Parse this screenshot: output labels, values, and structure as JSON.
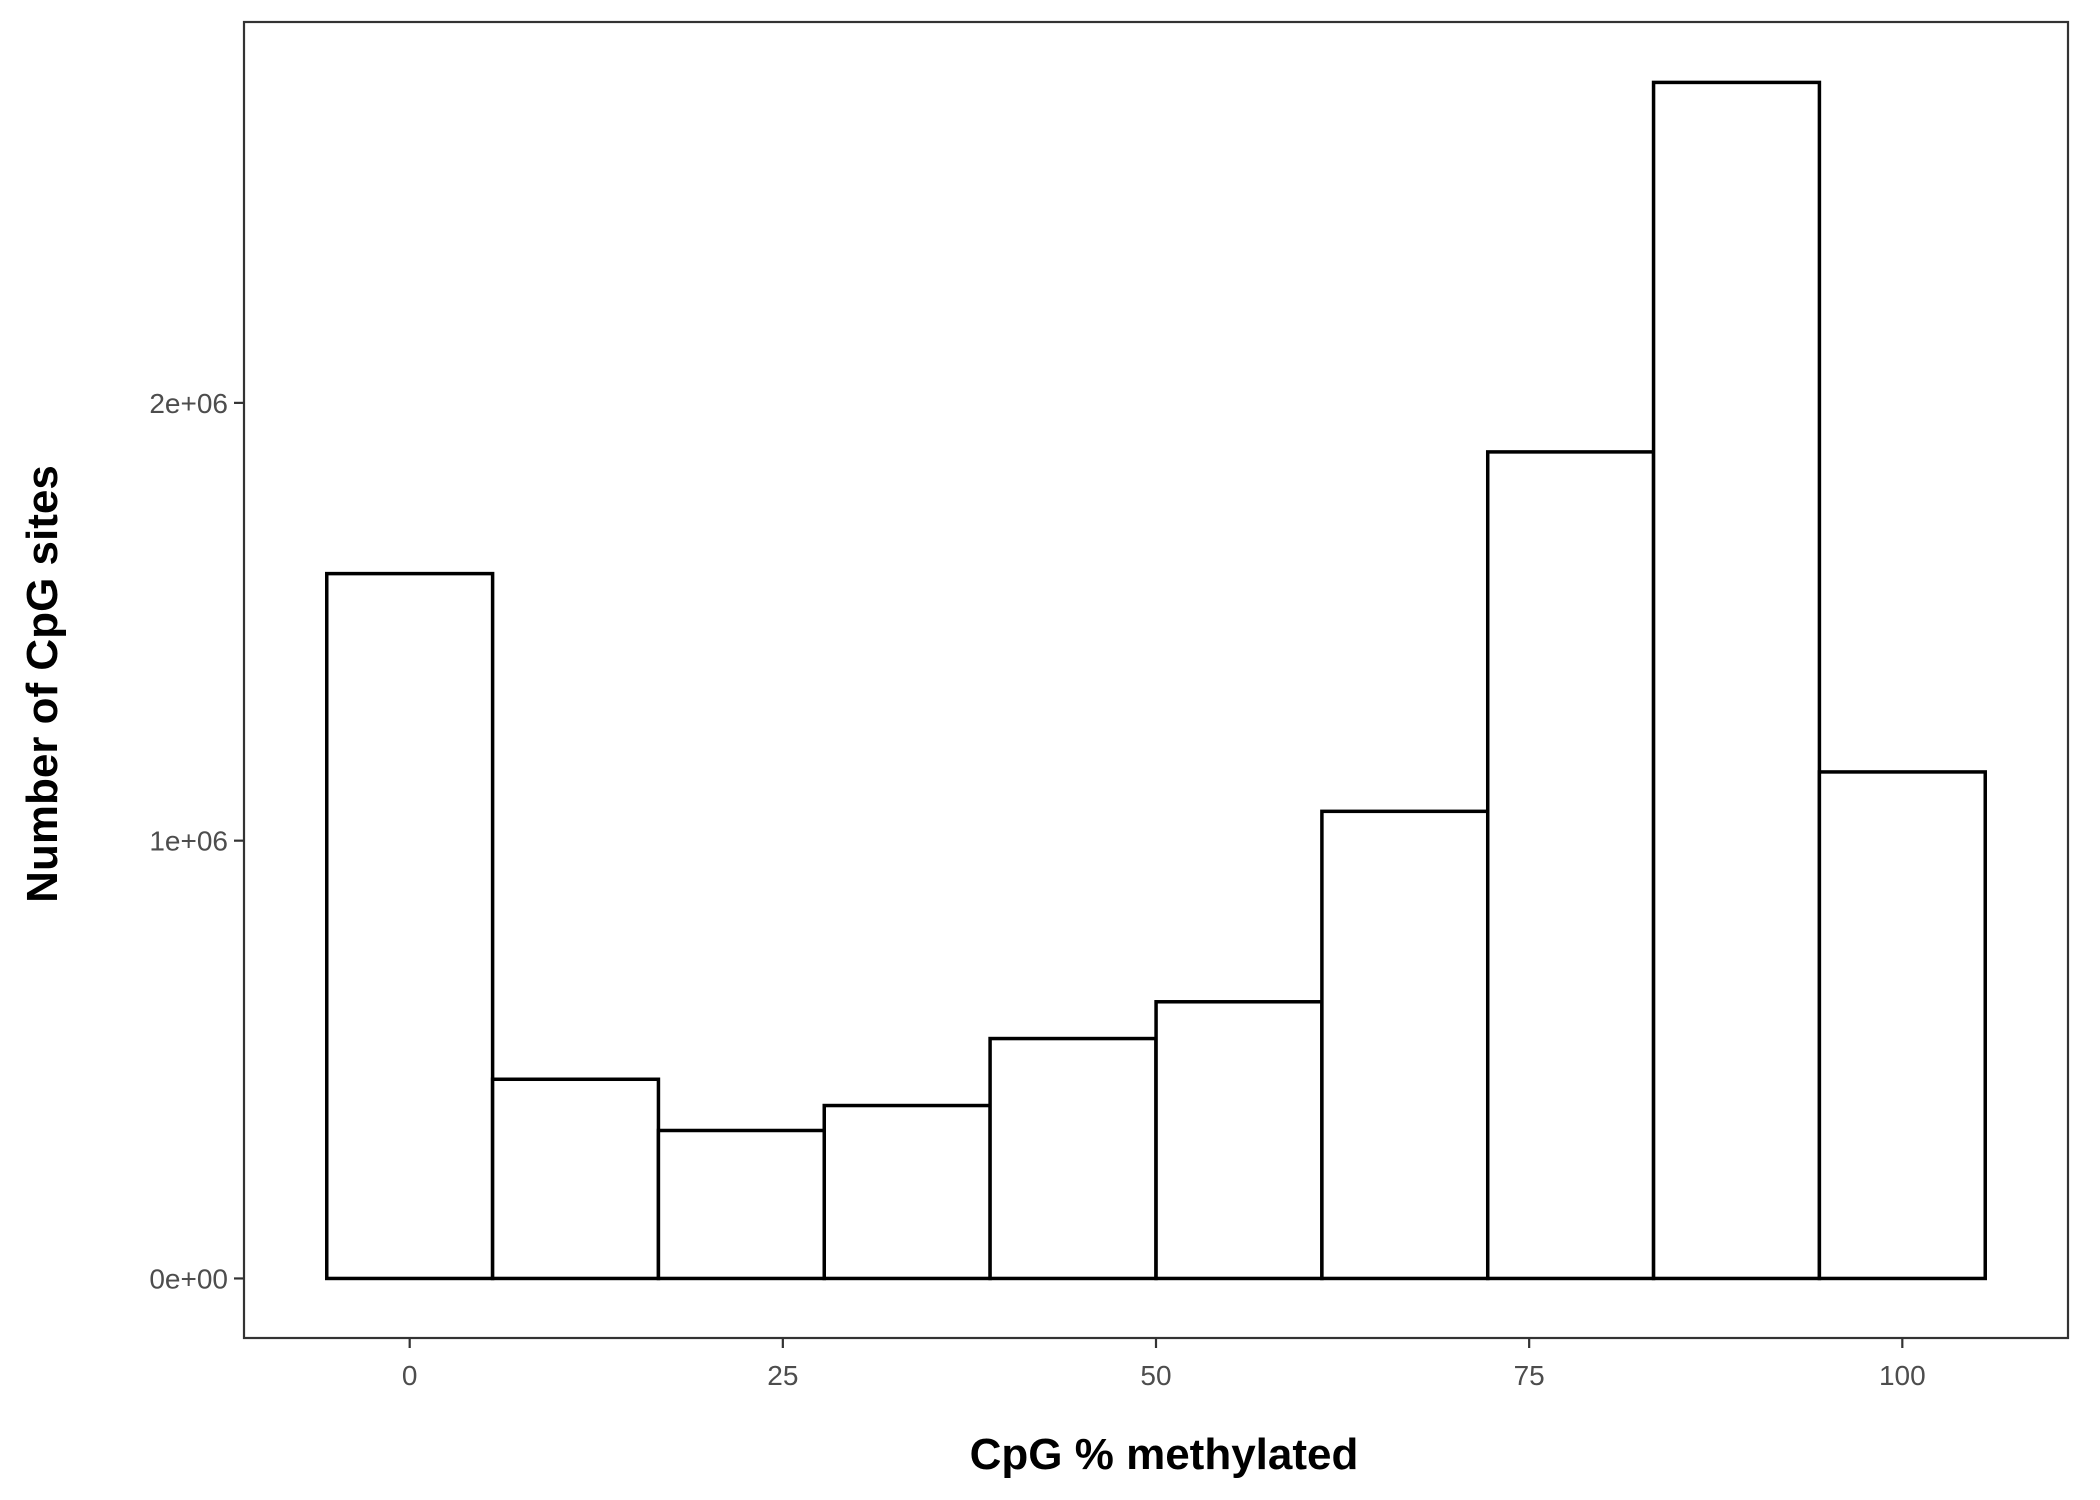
{
  "chart_data": {
    "type": "bar",
    "subtype": "histogram",
    "xlabel": "CpG % methylated",
    "ylabel": "Number of CpG sites",
    "bin_width": 11.111,
    "bins": [
      {
        "center": 0.0,
        "value": 1610000
      },
      {
        "center": 11.11,
        "value": 455000
      },
      {
        "center": 22.22,
        "value": 338000
      },
      {
        "center": 33.33,
        "value": 395000
      },
      {
        "center": 44.44,
        "value": 548000
      },
      {
        "center": 55.56,
        "value": 632000
      },
      {
        "center": 66.67,
        "value": 1067000
      },
      {
        "center": 77.78,
        "value": 1888000
      },
      {
        "center": 88.89,
        "value": 2732000
      },
      {
        "center": 100.0,
        "value": 1157000
      }
    ],
    "xlim": [
      -11.1,
      111.1
    ],
    "ylim": [
      -136000,
      2870000
    ],
    "x_ticks": [
      {
        "value": 0,
        "label": "0"
      },
      {
        "value": 25,
        "label": "25"
      },
      {
        "value": 50,
        "label": "50"
      },
      {
        "value": 75,
        "label": "75"
      },
      {
        "value": 100,
        "label": "100"
      }
    ],
    "y_ticks": [
      {
        "value": 0,
        "label": "0e+00"
      },
      {
        "value": 1000000,
        "label": "1e+06"
      },
      {
        "value": 2000000,
        "label": "2e+06"
      }
    ],
    "grid": false,
    "legend": "none",
    "colors": {
      "bar_fill": "#ffffff",
      "bar_outline": "#000000",
      "panel_border": "#333333",
      "tick_text": "#4d4d4d"
    }
  }
}
